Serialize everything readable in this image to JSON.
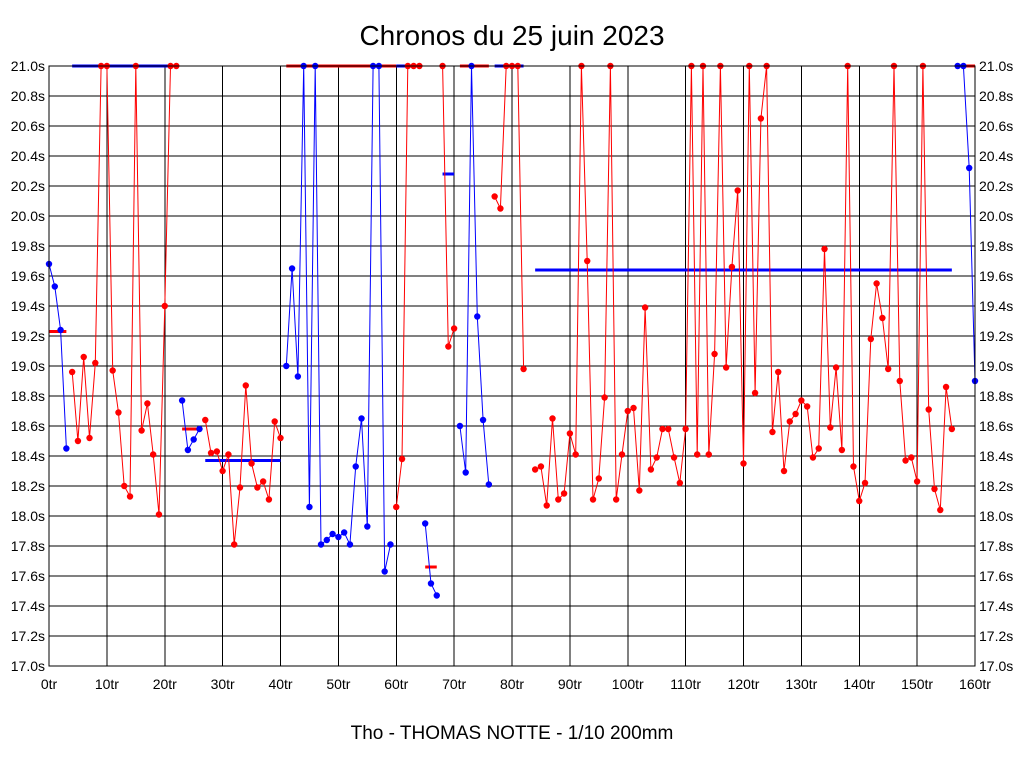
{
  "chart_data": {
    "type": "line",
    "title": "Chronos du 25 juin 2023",
    "footer": "Tho - THOMAS NOTTE - 1/10 200mm",
    "xlabel": "",
    "ylabel": "",
    "xlim": [
      0,
      160
    ],
    "ylim": [
      17.0,
      21.0
    ],
    "grid": true,
    "x_ticks": [
      0,
      10,
      20,
      30,
      40,
      50,
      60,
      70,
      80,
      90,
      100,
      110,
      120,
      130,
      140,
      150,
      160
    ],
    "x_tick_labels": [
      "0tr",
      "10tr",
      "20tr",
      "30tr",
      "40tr",
      "50tr",
      "60tr",
      "70tr",
      "80tr",
      "90tr",
      "100tr",
      "110tr",
      "120tr",
      "130tr",
      "140tr",
      "150tr",
      "160tr"
    ],
    "y_ticks": [
      17.0,
      17.2,
      17.4,
      17.6,
      17.8,
      18.0,
      18.2,
      18.4,
      18.6,
      18.8,
      19.0,
      19.2,
      19.4,
      19.6,
      19.8,
      20.0,
      20.2,
      20.4,
      20.6,
      20.8,
      21.0
    ],
    "y_tick_labels": [
      "17.0s",
      "17.2s",
      "17.4s",
      "17.6s",
      "17.8s",
      "18.0s",
      "18.2s",
      "18.4s",
      "18.6s",
      "18.8s",
      "19.0s",
      "19.2s",
      "19.4s",
      "19.6s",
      "19.8s",
      "20.0s",
      "20.2s",
      "20.4s",
      "20.6s",
      "20.8s",
      "21.0s"
    ],
    "colors": {
      "blue": "#0000ff",
      "red": "#ff0000",
      "grid": "#000000"
    },
    "series": [
      {
        "name": "blue-1",
        "color": "blue",
        "points": [
          [
            0,
            19.68
          ],
          [
            1,
            19.53
          ],
          [
            2,
            19.24
          ],
          [
            3,
            18.45
          ]
        ]
      },
      {
        "name": "red-1",
        "color": "red",
        "points": [
          [
            4,
            18.96
          ],
          [
            5,
            18.5
          ],
          [
            6,
            19.06
          ],
          [
            7,
            18.52
          ],
          [
            8,
            19.02
          ],
          [
            9,
            21.0
          ],
          [
            10,
            21.0
          ],
          [
            11,
            18.97
          ],
          [
            12,
            18.69
          ],
          [
            13,
            18.2
          ],
          [
            14,
            18.13
          ],
          [
            15,
            21.0
          ],
          [
            16,
            18.57
          ],
          [
            17,
            18.75
          ],
          [
            18,
            18.41
          ],
          [
            19,
            18.01
          ],
          [
            20,
            19.4
          ],
          [
            21,
            21.0
          ],
          [
            22,
            21.0
          ]
        ]
      },
      {
        "name": "blue-2",
        "color": "blue",
        "points": [
          [
            23,
            18.77
          ],
          [
            24,
            18.44
          ],
          [
            25,
            18.51
          ],
          [
            26,
            18.58
          ]
        ]
      },
      {
        "name": "red-2",
        "color": "red",
        "points": [
          [
            27,
            18.64
          ],
          [
            28,
            18.42
          ],
          [
            29,
            18.43
          ],
          [
            30,
            18.3
          ],
          [
            31,
            18.41
          ],
          [
            32,
            17.81
          ],
          [
            33,
            18.19
          ],
          [
            34,
            18.87
          ],
          [
            35,
            18.35
          ],
          [
            36,
            18.19
          ],
          [
            37,
            18.23
          ],
          [
            38,
            18.11
          ],
          [
            39,
            18.63
          ],
          [
            40,
            18.52
          ]
        ]
      },
      {
        "name": "blue-3",
        "color": "blue",
        "points": [
          [
            41,
            19.0
          ],
          [
            42,
            19.65
          ],
          [
            43,
            18.93
          ],
          [
            44,
            21.0
          ],
          [
            45,
            18.06
          ],
          [
            46,
            21.0
          ],
          [
            47,
            17.81
          ],
          [
            48,
            17.84
          ],
          [
            49,
            17.88
          ],
          [
            50,
            17.86
          ],
          [
            51,
            17.89
          ],
          [
            52,
            17.81
          ],
          [
            53,
            18.33
          ],
          [
            54,
            18.65
          ],
          [
            55,
            17.93
          ],
          [
            56,
            21.0
          ],
          [
            57,
            21.0
          ],
          [
            58,
            17.63
          ],
          [
            59,
            17.81
          ]
        ]
      },
      {
        "name": "red-3",
        "color": "red",
        "points": [
          [
            60,
            18.06
          ],
          [
            61,
            18.38
          ],
          [
            62,
            21.0
          ],
          [
            63,
            21.0
          ],
          [
            64,
            21.0
          ]
        ]
      },
      {
        "name": "blue-4",
        "color": "blue",
        "points": [
          [
            65,
            17.95
          ],
          [
            66,
            17.55
          ],
          [
            67,
            17.47
          ]
        ]
      },
      {
        "name": "red-4",
        "color": "red",
        "points": [
          [
            68,
            21.0
          ],
          [
            69,
            19.13
          ],
          [
            70,
            19.25
          ]
        ]
      },
      {
        "name": "blue-5",
        "color": "blue",
        "points": [
          [
            71,
            18.6
          ],
          [
            72,
            18.29
          ],
          [
            73,
            21.0
          ],
          [
            74,
            19.33
          ],
          [
            75,
            18.64
          ],
          [
            76,
            18.21
          ]
        ]
      },
      {
        "name": "red-5",
        "color": "red",
        "points": [
          [
            77,
            20.13
          ],
          [
            78,
            20.05
          ],
          [
            79,
            21.0
          ],
          [
            80,
            21.0
          ],
          [
            81,
            21.0
          ],
          [
            82,
            18.98
          ]
        ]
      },
      {
        "name": "red-6",
        "color": "red",
        "points": [
          [
            84,
            18.31
          ],
          [
            85,
            18.33
          ],
          [
            86,
            18.07
          ],
          [
            87,
            18.65
          ],
          [
            88,
            18.11
          ],
          [
            89,
            18.15
          ],
          [
            90,
            18.55
          ],
          [
            91,
            18.41
          ],
          [
            92,
            21.0
          ],
          [
            93,
            19.7
          ],
          [
            94,
            18.11
          ],
          [
            95,
            18.25
          ],
          [
            96,
            18.79
          ],
          [
            97,
            21.0
          ],
          [
            98,
            18.11
          ],
          [
            99,
            18.41
          ],
          [
            100,
            18.7
          ],
          [
            101,
            18.72
          ],
          [
            102,
            18.17
          ],
          [
            103,
            19.39
          ],
          [
            104,
            18.31
          ],
          [
            105,
            18.39
          ],
          [
            106,
            18.58
          ],
          [
            107,
            18.58
          ],
          [
            108,
            18.39
          ],
          [
            109,
            18.22
          ],
          [
            110,
            18.58
          ],
          [
            111,
            21.0
          ],
          [
            112,
            18.41
          ],
          [
            113,
            21.0
          ],
          [
            114,
            18.41
          ],
          [
            115,
            19.08
          ],
          [
            116,
            21.0
          ],
          [
            117,
            18.99
          ],
          [
            118,
            19.66
          ],
          [
            119,
            20.17
          ],
          [
            120,
            18.35
          ],
          [
            121,
            21.0
          ],
          [
            122,
            18.82
          ],
          [
            123,
            20.65
          ],
          [
            124,
            21.0
          ],
          [
            125,
            18.56
          ],
          [
            126,
            18.96
          ],
          [
            127,
            18.3
          ],
          [
            128,
            18.63
          ],
          [
            129,
            18.68
          ],
          [
            130,
            18.77
          ],
          [
            131,
            18.73
          ],
          [
            132,
            18.39
          ],
          [
            133,
            18.45
          ],
          [
            134,
            19.78
          ],
          [
            135,
            18.59
          ],
          [
            136,
            18.99
          ],
          [
            137,
            18.44
          ],
          [
            138,
            21.0
          ],
          [
            139,
            18.33
          ],
          [
            140,
            18.1
          ],
          [
            141,
            18.22
          ],
          [
            142,
            19.18
          ],
          [
            143,
            19.55
          ],
          [
            144,
            19.32
          ],
          [
            145,
            18.98
          ],
          [
            146,
            21.0
          ],
          [
            147,
            18.9
          ],
          [
            148,
            18.37
          ],
          [
            149,
            18.39
          ],
          [
            150,
            18.23
          ],
          [
            151,
            21.0
          ],
          [
            152,
            18.71
          ],
          [
            153,
            18.18
          ],
          [
            154,
            18.04
          ],
          [
            155,
            18.86
          ],
          [
            156,
            18.58
          ]
        ]
      },
      {
        "name": "blue-6",
        "color": "blue",
        "points": [
          [
            157,
            21.0
          ],
          [
            158,
            21.0
          ],
          [
            159,
            20.32
          ],
          [
            160,
            18.9
          ]
        ]
      }
    ],
    "segments": [
      {
        "color": "red",
        "x": [
          0,
          3
        ],
        "y": 19.23
      },
      {
        "color": "blue",
        "x": [
          4,
          21
        ],
        "y": 21.0
      },
      {
        "color": "red",
        "x": [
          23,
          26
        ],
        "y": 18.58
      },
      {
        "color": "blue",
        "x": [
          27,
          40
        ],
        "y": 18.37
      },
      {
        "color": "red",
        "x": [
          41,
          60
        ],
        "y": 21.0
      },
      {
        "color": "blue",
        "x": [
          60,
          64
        ],
        "y": 21.0
      },
      {
        "color": "red",
        "x": [
          65,
          67
        ],
        "y": 17.66
      },
      {
        "color": "blue",
        "x": [
          68,
          70
        ],
        "y": 20.28
      },
      {
        "color": "red",
        "x": [
          71,
          76
        ],
        "y": 21.0
      },
      {
        "color": "blue",
        "x": [
          77,
          82
        ],
        "y": 21.0
      },
      {
        "color": "blue",
        "x": [
          84,
          156
        ],
        "y": 19.64
      },
      {
        "color": "red",
        "x": [
          157,
          160
        ],
        "y": 21.0
      }
    ]
  }
}
